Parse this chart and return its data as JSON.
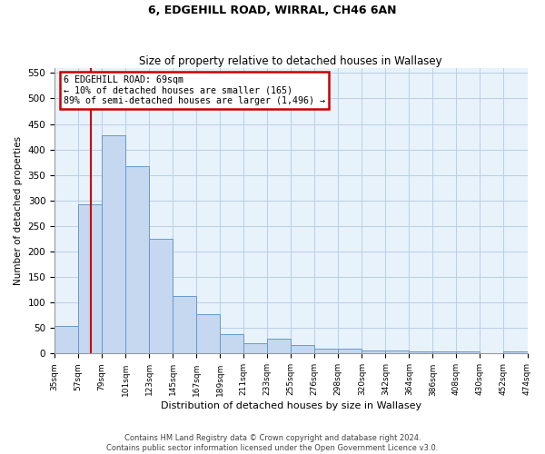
{
  "title": "6, EDGEHILL ROAD, WIRRAL, CH46 6AN",
  "subtitle": "Size of property relative to detached houses in Wallasey",
  "xlabel": "Distribution of detached houses by size in Wallasey",
  "ylabel": "Number of detached properties",
  "categories": [
    "35sqm",
    "57sqm",
    "79sqm",
    "101sqm",
    "123sqm",
    "145sqm",
    "167sqm",
    "189sqm",
    "211sqm",
    "233sqm",
    "255sqm",
    "276sqm",
    "298sqm",
    "320sqm",
    "342sqm",
    "364sqm",
    "386sqm",
    "408sqm",
    "430sqm",
    "452sqm",
    "474sqm"
  ],
  "bar_heights": [
    55,
    293,
    428,
    367,
    225,
    113,
    77,
    38,
    20,
    29,
    17,
    9,
    9,
    7,
    7,
    4,
    5,
    5,
    0,
    5
  ],
  "bar_color": "#c5d8f0",
  "bar_edgecolor": "#6699cc",
  "annotation_line1": "6 EDGEHILL ROAD: 69sqm",
  "annotation_line2": "← 10% of detached houses are smaller (165)",
  "annotation_line3": "89% of semi-detached houses are larger (1,496) →",
  "ylim": [
    0,
    560
  ],
  "yticks": [
    0,
    50,
    100,
    150,
    200,
    250,
    300,
    350,
    400,
    450,
    500,
    550
  ],
  "footer_line1": "Contains HM Land Registry data © Crown copyright and database right 2024.",
  "footer_line2": "Contains public sector information licensed under the Open Government Licence v3.0.",
  "bg_color": "#ffffff",
  "plot_bg_color": "#e8f2fb",
  "grid_color": "#b8cfe8",
  "annotation_box_facecolor": "#ffffff",
  "annotation_box_edgecolor": "#cc0000",
  "vline_color": "#cc0000",
  "title_fontsize": 9,
  "subtitle_fontsize": 8.5
}
